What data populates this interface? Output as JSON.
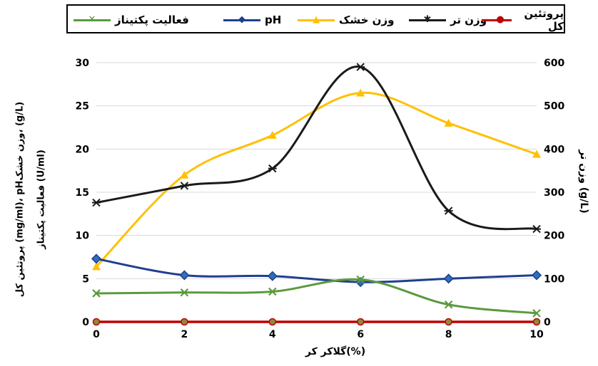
{
  "chart_data": {
    "type": "line",
    "x": [
      0,
      2,
      4,
      6,
      8,
      10
    ],
    "xlabel": "گلاکر کر(%)",
    "ylabel_left_line1": "پروتئین کل (mg/ml)، pHوزن خشک، (g/L)",
    "ylabel_left_line2": "فعالیت پکتیناز (U/ml)",
    "ylabel_right": "وزن تر (g/L)",
    "ylim_left": [
      0,
      30
    ],
    "ylim_right": [
      0,
      600
    ],
    "yticks_left": [
      "0",
      "5",
      "10",
      "15",
      "20",
      "25",
      "30"
    ],
    "yticks_right": [
      "0",
      "100",
      "200",
      "300",
      "400",
      "500",
      "600"
    ],
    "xticks": [
      "0",
      "2",
      "4",
      "6",
      "8",
      "10"
    ],
    "series": [
      {
        "name": "فعالیت پکتیناز",
        "axis": "left",
        "color": "#5b9a3c",
        "marker": "x",
        "values": [
          3.3,
          3.4,
          3.5,
          4.9,
          2.0,
          1.0
        ]
      },
      {
        "name": "pH",
        "axis": "left",
        "color": "#1f3f8f",
        "marker": "diamond",
        "values": [
          7.3,
          5.4,
          5.3,
          4.6,
          5.0,
          5.4
        ]
      },
      {
        "name": "وزن خشک",
        "axis": "left",
        "color": "#ffc000",
        "marker": "triangle",
        "values": [
          6.4,
          17.0,
          21.6,
          26.5,
          23.0,
          19.4
        ]
      },
      {
        "name": "وزن تر",
        "axis": "right",
        "color": "#1a1a1a",
        "marker": "cross",
        "values": [
          276,
          315,
          355,
          590,
          257,
          215
        ]
      },
      {
        "name": "پروتئین کل",
        "axis": "left",
        "color": "#c00000",
        "marker": "circle",
        "values": [
          0,
          0,
          0,
          0,
          0,
          0
        ]
      }
    ]
  }
}
